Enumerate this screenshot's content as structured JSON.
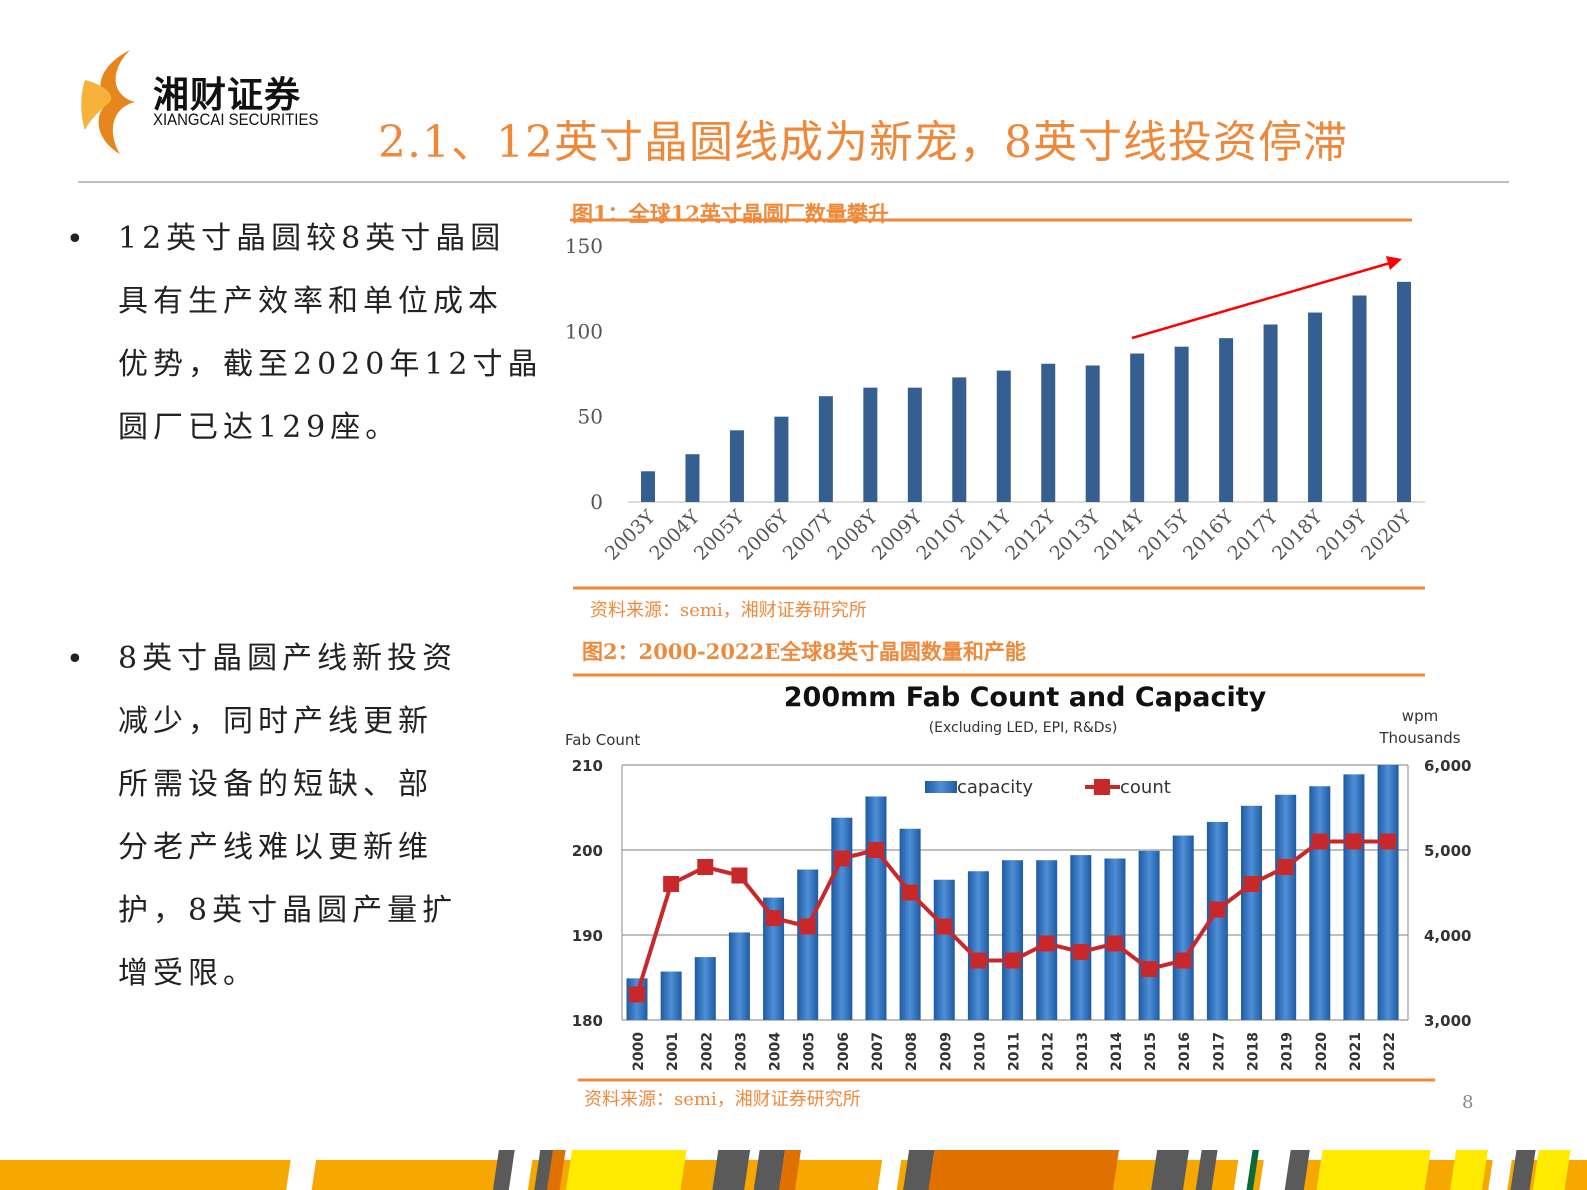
{
  "header": {
    "logo_cn": "湘财证券",
    "logo_en": "XIANGCAI SECURITIES",
    "title": "2.1、12英寸晶圆线成为新宠，8英寸线投资停滞"
  },
  "bullets": [
    {
      "symbol": "•",
      "lines": [
        "12英寸晶圆较8英寸晶圆",
        "具有生产效率和单位成本",
        "优势，截至2020年12寸晶",
        "圆厂已达129座。"
      ]
    },
    {
      "symbol": "•",
      "lines": [
        "8英寸晶圆产线新投资",
        "减少，同时产线更新",
        "所需设备的短缺、部",
        "分老产线难以更新维",
        "护，8英寸晶圆产量扩",
        "增受限。"
      ]
    }
  ],
  "figure1": {
    "caption": "图1：全球12英寸晶圆厂数量攀升",
    "source": "资料来源：semi，湘财证券研究所"
  },
  "figure2": {
    "caption": "图2：2000-2022E全球8英寸晶圆数量和产能",
    "source": "资料来源：semi，湘财证券研究所"
  },
  "page_number": "8",
  "colors": {
    "accent": "#f0883a",
    "bar1": "#365f91",
    "bar2": "#2e6db4",
    "line": "#c8282a",
    "arrow": "#ff0000"
  },
  "chart_data": [
    {
      "type": "bar",
      "title": "",
      "categories": [
        "2003Y",
        "2004Y",
        "2005Y",
        "2006Y",
        "2007Y",
        "2008Y",
        "2009Y",
        "2010Y",
        "2011Y",
        "2012Y",
        "2013Y",
        "2014Y",
        "2015Y",
        "2016Y",
        "2017Y",
        "2018Y",
        "2019Y",
        "2020Y"
      ],
      "values": [
        18,
        28,
        42,
        50,
        62,
        67,
        67,
        73,
        77,
        81,
        80,
        87,
        91,
        96,
        104,
        111,
        121,
        129
      ],
      "ylim": [
        0,
        150
      ],
      "yticks": [
        "0",
        "50",
        "100",
        "150"
      ],
      "annotation": "red upward trend arrow over 2014Y-2020Y",
      "grid": false
    },
    {
      "type": "bar+line",
      "title": "200mm Fab Count and Capacity",
      "subtitle": "(Excluding LED, EPI, R&Ds)",
      "ylabel_left": "Fab Count",
      "ylabel_right_1": "wpm",
      "ylabel_right_2": "Thousands",
      "categories": [
        "2000",
        "2001",
        "2002",
        "2003",
        "2004",
        "2005",
        "2006",
        "2007",
        "2008",
        "2009",
        "2010",
        "2011",
        "2012",
        "2013",
        "2014",
        "2015",
        "2016",
        "2017",
        "2018",
        "2019",
        "2020",
        "2021",
        "2022"
      ],
      "series": [
        {
          "name": "capacity",
          "type": "bar",
          "axis": "right",
          "values": [
            3490,
            3570,
            3740,
            4030,
            4440,
            4770,
            5380,
            5630,
            5250,
            4650,
            4750,
            4880,
            4880,
            4940,
            4900,
            4990,
            5170,
            5330,
            5520,
            5650,
            5750,
            5890,
            6000
          ]
        },
        {
          "name": "count",
          "type": "line",
          "axis": "left",
          "values": [
            183,
            196,
            198,
            197,
            192,
            191,
            199,
            200,
            195,
            191,
            187,
            187,
            189,
            188,
            189,
            186,
            187,
            193,
            196,
            198,
            201,
            201,
            201
          ]
        }
      ],
      "ylim_left": [
        180,
        210
      ],
      "yticks_left": [
        "180",
        "190",
        "200",
        "210"
      ],
      "ylim_right": [
        3000,
        6000
      ],
      "yticks_right": [
        "3,000",
        "4,000",
        "5,000",
        "6,000"
      ],
      "legend": "top-center",
      "grid": true
    }
  ]
}
